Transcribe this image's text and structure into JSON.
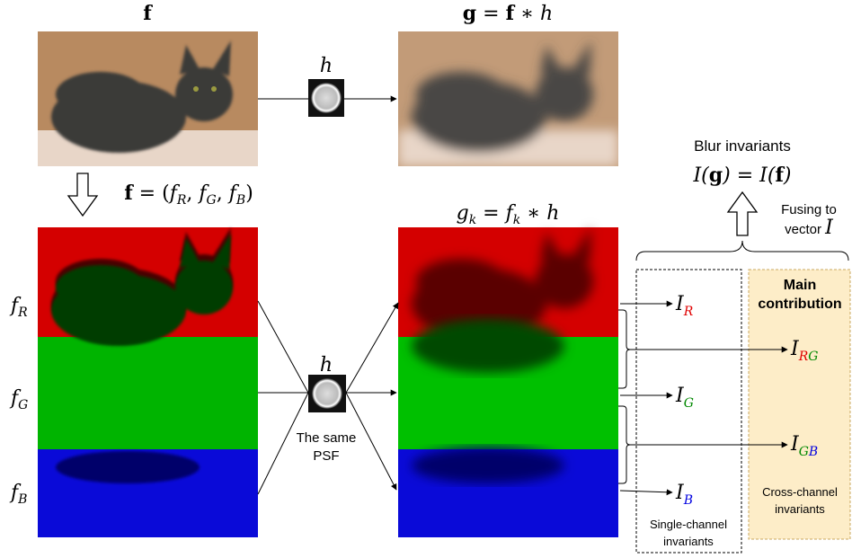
{
  "top": {
    "f_label": "f",
    "g_eq": [
      "g",
      " = ",
      "f",
      " ∗ ",
      "h"
    ],
    "psf_label": "h",
    "f_rgb": [
      "f",
      " = (",
      "f",
      "R",
      ", ",
      "f",
      "G",
      ", ",
      "f",
      "B",
      ")"
    ]
  },
  "channels": {
    "labels": [
      [
        "f",
        "R"
      ],
      [
        "f",
        "G"
      ],
      [
        "f",
        "B"
      ]
    ],
    "gk_eq": [
      "g",
      "k",
      " = ",
      "f",
      "k",
      " ∗ ",
      "h"
    ],
    "psf_label": "h",
    "psf_caption": [
      "The same",
      "PSF"
    ]
  },
  "invariants": {
    "title": "Blur invariants",
    "eq": [
      "I(",
      "g",
      ") = I(",
      "f",
      ")"
    ],
    "fusing": [
      "Fusing to",
      "vector ",
      "I"
    ],
    "main": [
      "Main",
      "contribution"
    ],
    "single": [
      [
        "I",
        "R"
      ],
      [
        "I",
        "G"
      ],
      [
        "I",
        "B"
      ]
    ],
    "cross": [
      [
        "I",
        "R",
        "G"
      ],
      [
        "I",
        "G",
        "B"
      ]
    ],
    "single_caption": [
      "Single-channel",
      "invariants"
    ],
    "cross_caption": [
      "Cross-channel",
      "invariants"
    ]
  }
}
